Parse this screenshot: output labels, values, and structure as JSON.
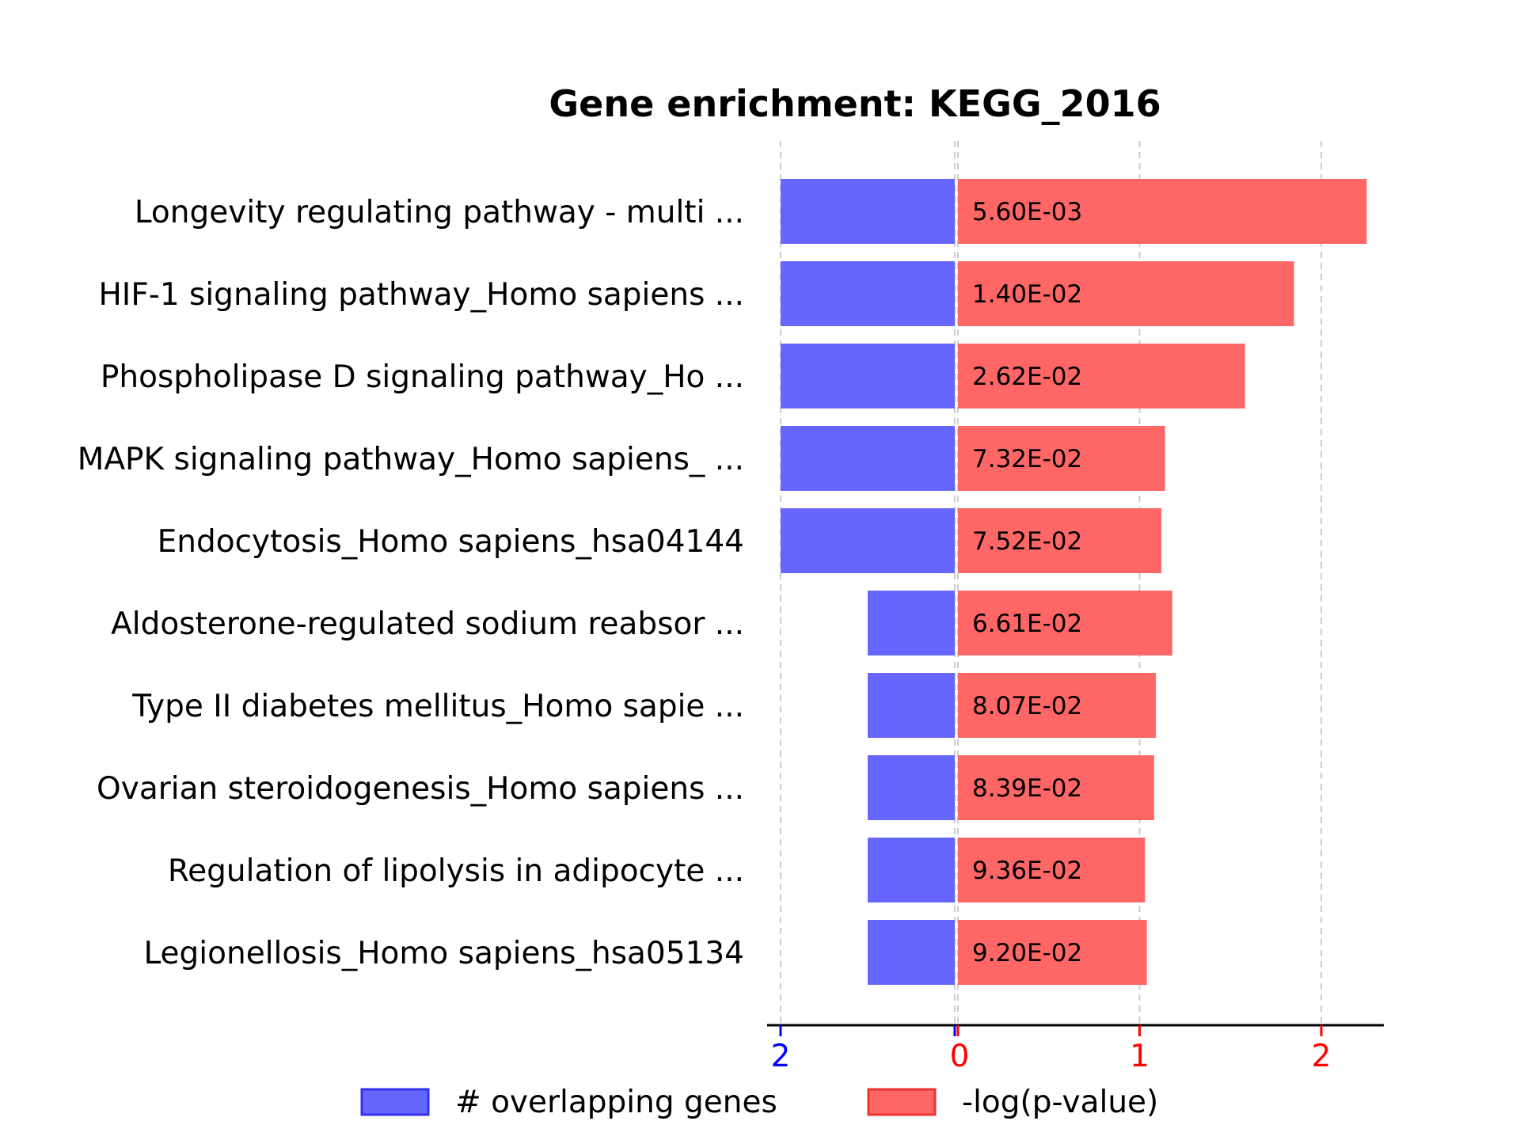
{
  "chart_data": {
    "type": "bar",
    "title": "Gene enrichment: KEGG_2016",
    "categories": [
      "Longevity regulating pathway - multi ...",
      "HIF-1 signaling pathway_Homo sapiens ...",
      "Phospholipase D signaling pathway_Ho ...",
      "MAPK signaling pathway_Homo sapiens_ ...",
      "Endocytosis_Homo sapiens_hsa04144",
      "Aldosterone-regulated sodium reabsor ...",
      "Type II diabetes mellitus_Homo sapie ...",
      "Ovarian steroidogenesis_Homo sapiens ...",
      "Regulation of lipolysis in adipocyte ...",
      "Legionellosis_Homo sapiens_hsa05134"
    ],
    "series": [
      {
        "name": "# overlapping genes",
        "color": "#6666ff",
        "values": [
          2,
          2,
          2,
          2,
          2,
          1,
          1,
          1,
          1,
          1
        ]
      },
      {
        "name": "-log(p-value)",
        "color": "#ff6666",
        "values": [
          2.25,
          1.85,
          1.58,
          1.14,
          1.12,
          1.18,
          1.09,
          1.08,
          1.03,
          1.04
        ],
        "labels": [
          "5.60E-03",
          "1.40E-02",
          "2.62E-02",
          "7.32E-02",
          "7.52E-02",
          "6.61E-02",
          "8.07E-02",
          "8.39E-02",
          "9.36E-02",
          "9.20E-02"
        ]
      }
    ],
    "left_axis": {
      "ticks": [
        2,
        0
      ],
      "color": "#0000ff",
      "range": [
        0,
        2
      ]
    },
    "right_axis": {
      "ticks": [
        0,
        1,
        2
      ],
      "color": "#ff0000",
      "range": [
        0,
        2.4
      ]
    },
    "grid": "vertical dashed",
    "legend": {
      "position": "bottom",
      "entries": [
        "# overlapping genes",
        "-log(p-value)"
      ]
    }
  }
}
